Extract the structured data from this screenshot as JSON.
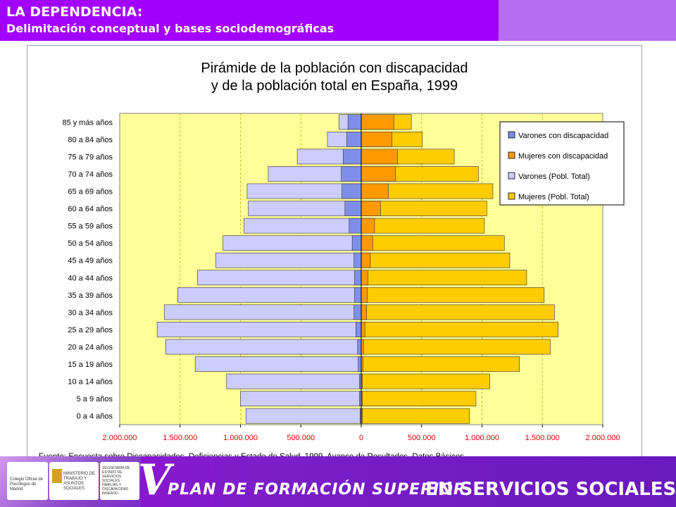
{
  "header": {
    "title": "LA DEPENDENCIA:",
    "subtitle": "Delimitación conceptual y bases sociodemográficas"
  },
  "colors": {
    "header_bg": "#a200ff",
    "varones_disc": "#7f8ee8",
    "mujeres_disc": "#ff9900",
    "varones_total": "#ccccff",
    "mujeres_total": "#ffcc00",
    "plot_bg": "#ffff99"
  },
  "chart_data": {
    "type": "bar",
    "orientation": "horizontal",
    "title_lines": [
      "Pirámide de la población con discapacidad",
      "y de la población total en España, 1999"
    ],
    "categories": [
      "85 y más años",
      "80 a 84 años",
      "75 a 79 años",
      "70 a 74 años",
      "65 a 69 años",
      "60 a 64 años",
      "55 a 59 años",
      "50 a 54 años",
      "45 a 49 años",
      "40 a 44 años",
      "35 a 39 años",
      "30 a 34 años",
      "25 a 29 años",
      "20 a 24 años",
      "15 a 19 años",
      "10 a 14 años",
      "5 a 9 años",
      "0 a 4 años"
    ],
    "xlim": [
      -2000000,
      2000000
    ],
    "x_ticks": [
      -2000000,
      -1500000,
      -1000000,
      -500000,
      0,
      500000,
      1000000,
      1500000,
      2000000
    ],
    "x_tick_labels": [
      "2.000.000",
      "1.500.000",
      "1.000.000",
      "500.000",
      "0",
      "500.000",
      "1.000.000",
      "1.500.000",
      "2.000.000"
    ],
    "grid": true,
    "legend_position": "top-right",
    "series": [
      {
        "name": "Varones con discapacidad",
        "values": [
          110000,
          120000,
          150000,
          165000,
          160000,
          135000,
          100000,
          75000,
          60000,
          55000,
          55000,
          60000,
          45000,
          30000,
          25000,
          15000,
          15000,
          10000
        ]
      },
      {
        "name": "Mujeres con discapacidad",
        "values": [
          270000,
          255000,
          300000,
          285000,
          225000,
          160000,
          110000,
          95000,
          75000,
          55000,
          50000,
          45000,
          30000,
          20000,
          15000,
          10000,
          10000,
          10000
        ]
      },
      {
        "name": "Varones (Pobl. Total)",
        "values": [
          185000,
          280000,
          530000,
          770000,
          945000,
          935000,
          970000,
          1145000,
          1205000,
          1355000,
          1520000,
          1630000,
          1690000,
          1620000,
          1375000,
          1115000,
          1000000,
          955000
        ]
      },
      {
        "name": "Mujeres (Pobl. Total)",
        "values": [
          415000,
          505000,
          770000,
          970000,
          1090000,
          1040000,
          1020000,
          1185000,
          1230000,
          1370000,
          1515000,
          1600000,
          1630000,
          1565000,
          1310000,
          1065000,
          950000,
          895000
        ]
      }
    ],
    "source": "Fuente: Encuesta sobre Discapacidades, Deficiencias y Estado de Salud, 1999. Avance de Resultados. Datos Básicos."
  },
  "footer": {
    "logo1_text": "Colegio Oficial de Psicólogos de Madrid",
    "logo2_text": "MINISTERIO DE TRABAJO Y ASUNTOS SOCIALES",
    "logo3_text": "SECRETARÍA DE ESTADO DE SERVICIOS SOCIALES, FAMILIAS Y DISCAPACIDAD IMSERSO",
    "plan_letter": "V",
    "plan_text": "PLAN DE FORMACIÓN SUPERIOR",
    "plan_text_strong": "EN SERVICIOS SOCIALES"
  }
}
